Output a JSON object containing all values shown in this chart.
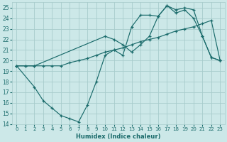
{
  "xlabel": "Humidex (Indice chaleur)",
  "bg_color": "#cce8e8",
  "grid_color": "#a8cccc",
  "line_color": "#1a6b6b",
  "xlim": [
    -0.5,
    23.5
  ],
  "ylim": [
    14,
    25.5
  ],
  "yticks": [
    14,
    15,
    16,
    17,
    18,
    19,
    20,
    21,
    22,
    23,
    24,
    25
  ],
  "xticks": [
    0,
    1,
    2,
    3,
    4,
    5,
    6,
    7,
    8,
    9,
    10,
    11,
    12,
    13,
    14,
    15,
    16,
    17,
    18,
    19,
    20,
    21,
    22,
    23
  ],
  "s1_x": [
    0,
    1,
    2,
    10,
    11,
    12,
    13,
    14,
    15,
    16,
    17,
    18,
    19,
    20,
    21,
    22,
    23
  ],
  "s1_y": [
    19.5,
    19.5,
    19.5,
    22.3,
    22.0,
    21.5,
    20.8,
    21.5,
    22.3,
    24.2,
    25.2,
    24.8,
    25.0,
    24.8,
    22.3,
    20.3,
    20.0
  ],
  "s2_x": [
    0,
    1,
    2,
    3,
    4,
    5,
    6,
    7,
    8,
    9,
    10,
    11,
    12,
    13,
    14,
    15,
    16,
    17,
    18,
    19,
    20,
    21,
    22,
    23
  ],
  "s2_y": [
    19.5,
    19.5,
    19.5,
    19.5,
    19.5,
    19.5,
    19.8,
    20.0,
    20.2,
    20.5,
    20.8,
    21.0,
    21.2,
    21.5,
    21.8,
    22.0,
    22.2,
    22.5,
    22.8,
    23.0,
    23.2,
    23.5,
    23.8,
    20.0
  ],
  "s3_x": [
    0,
    2,
    3,
    4,
    5,
    6,
    7,
    8,
    9,
    10,
    11,
    12,
    13,
    14,
    15,
    16,
    17,
    18,
    19,
    20,
    21,
    22,
    23
  ],
  "s3_y": [
    19.5,
    17.5,
    16.2,
    15.5,
    14.8,
    14.5,
    14.2,
    15.8,
    18.0,
    20.5,
    21.0,
    20.5,
    23.2,
    24.3,
    24.3,
    24.2,
    25.2,
    24.5,
    24.8,
    24.0,
    22.3,
    20.3,
    20.0
  ]
}
